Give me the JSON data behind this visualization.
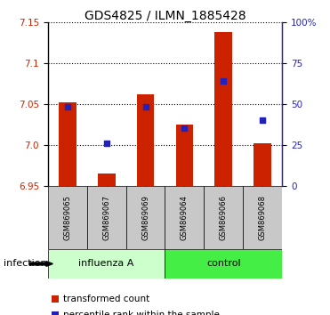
{
  "title": "GDS4825 / ILMN_1885428",
  "samples": [
    "GSM869065",
    "GSM869067",
    "GSM869069",
    "GSM869064",
    "GSM869066",
    "GSM869068"
  ],
  "bar_values": [
    7.052,
    6.965,
    7.062,
    7.025,
    7.138,
    7.002
  ],
  "dot_values": [
    7.047,
    7.002,
    7.047,
    7.02,
    7.078,
    7.03
  ],
  "bar_color": "#cc2200",
  "dot_color": "#2222bb",
  "ylim_left": [
    6.95,
    7.15
  ],
  "yticks_left": [
    6.95,
    7.0,
    7.05,
    7.1,
    7.15
  ],
  "ylim_right": [
    0,
    100
  ],
  "yticks_right": [
    0,
    25,
    50,
    75,
    100
  ],
  "yticklabels_right": [
    "0",
    "25",
    "50",
    "75",
    "100%"
  ],
  "bar_bottom": 6.95,
  "factor_label": "infection",
  "group_spans": [
    [
      0,
      2,
      "influenza A",
      "#ccffcc"
    ],
    [
      3,
      5,
      "control",
      "#44ee44"
    ]
  ],
  "legend_items": [
    "transformed count",
    "percentile rank within the sample"
  ],
  "sample_box_color": "#c8c8c8",
  "title_fontsize": 10
}
